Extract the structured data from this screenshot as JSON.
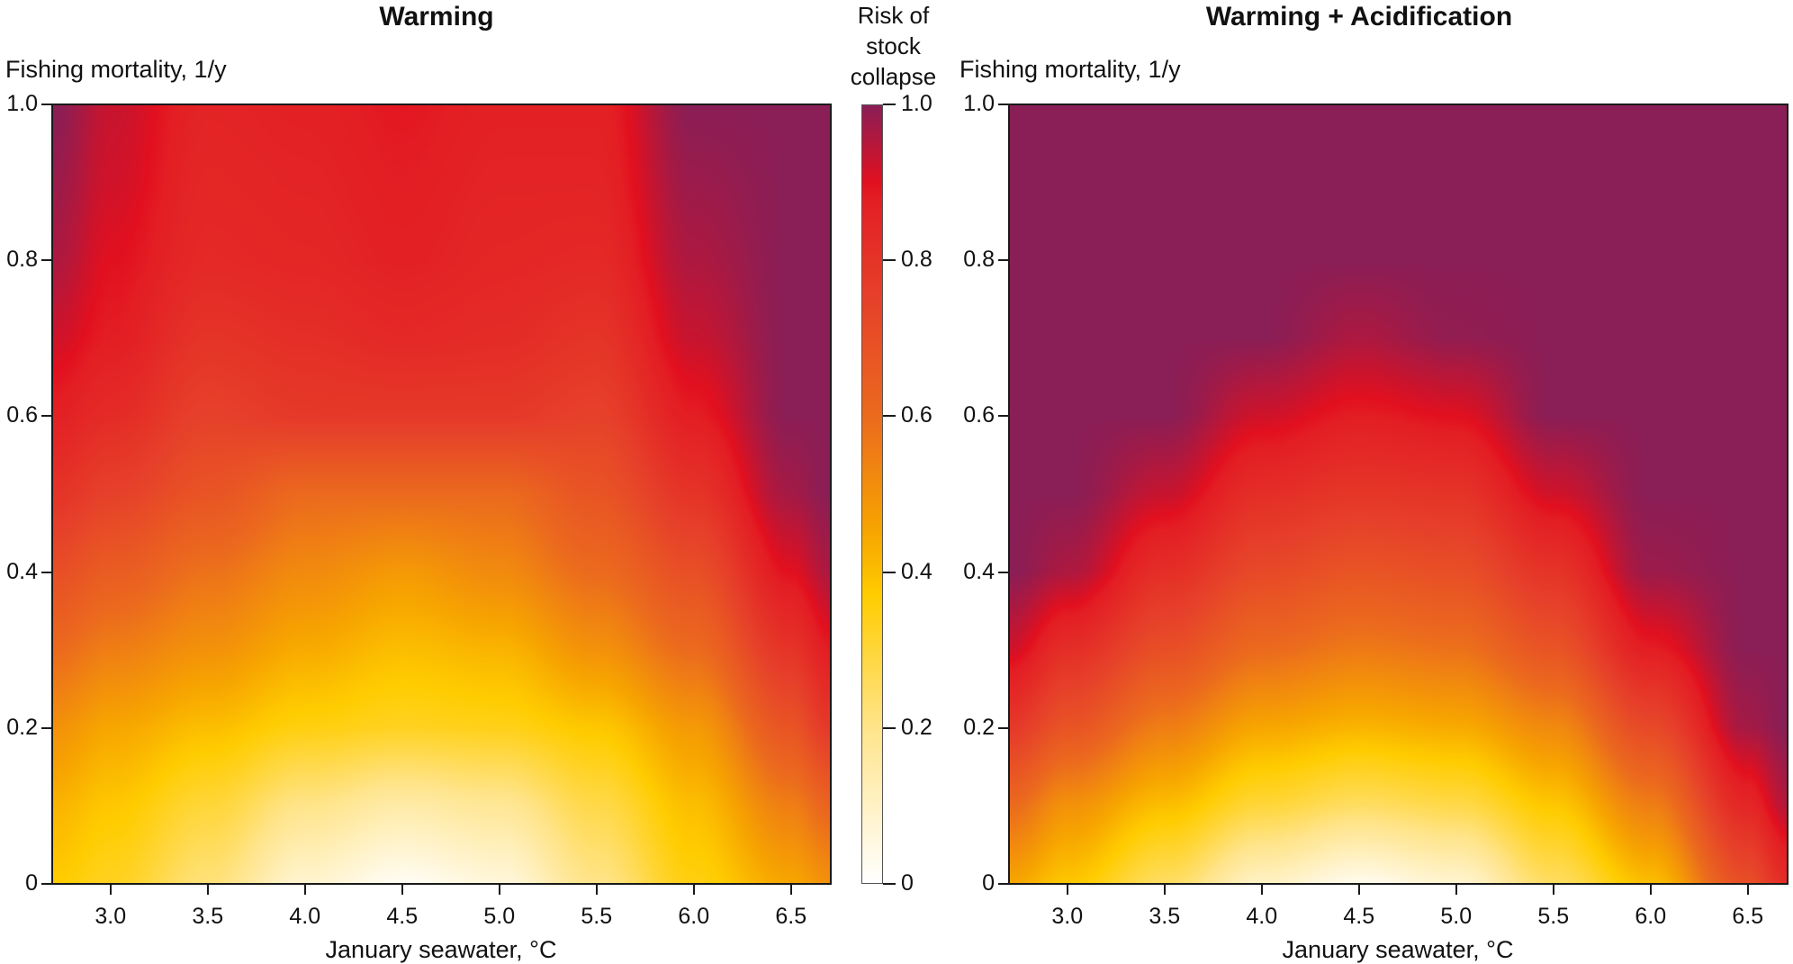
{
  "chart_data": [
    {
      "type": "heatmap",
      "title": "Warming",
      "xlabel": "January seawater, °C",
      "ylabel": "Fishing mortality, 1/y",
      "xlim": [
        2.7,
        6.7
      ],
      "ylim": [
        0,
        1.0
      ],
      "xticks": [
        "3.0",
        "3.5",
        "4.0",
        "4.5",
        "5.0",
        "5.5",
        "6.0",
        "6.5"
      ],
      "yticks": [
        "0",
        "0.2",
        "0.4",
        "0.6",
        "0.8",
        "1.0"
      ],
      "x": [
        2.7,
        3.0,
        3.5,
        4.0,
        4.5,
        5.0,
        5.5,
        6.0,
        6.5,
        6.7
      ],
      "y": [
        0,
        0.1,
        0.2,
        0.3,
        0.4,
        0.5,
        0.6,
        0.7,
        0.8,
        0.9,
        1.0
      ],
      "z": [
        [
          0.37,
          0.33,
          0.22,
          0.08,
          0.02,
          0.06,
          0.2,
          0.35,
          0.45,
          0.5
        ],
        [
          0.42,
          0.38,
          0.3,
          0.2,
          0.15,
          0.18,
          0.28,
          0.4,
          0.55,
          0.62
        ],
        [
          0.5,
          0.45,
          0.4,
          0.35,
          0.33,
          0.34,
          0.38,
          0.48,
          0.68,
          0.78
        ],
        [
          0.6,
          0.55,
          0.5,
          0.44,
          0.4,
          0.42,
          0.5,
          0.6,
          0.8,
          0.88
        ],
        [
          0.7,
          0.65,
          0.58,
          0.52,
          0.48,
          0.52,
          0.6,
          0.7,
          0.9,
          0.96
        ],
        [
          0.8,
          0.75,
          0.68,
          0.6,
          0.6,
          0.6,
          0.68,
          0.8,
          0.97,
          1.0
        ],
        [
          0.87,
          0.83,
          0.75,
          0.78,
          0.78,
          0.78,
          0.75,
          0.88,
          1.0,
          1.0
        ],
        [
          0.92,
          0.88,
          0.8,
          0.82,
          0.84,
          0.83,
          0.8,
          0.93,
          1.0,
          1.0
        ],
        [
          0.96,
          0.9,
          0.84,
          0.85,
          0.87,
          0.85,
          0.84,
          0.96,
          1.0,
          1.0
        ],
        [
          0.98,
          0.92,
          0.85,
          0.86,
          0.88,
          0.86,
          0.86,
          0.98,
          1.0,
          1.0
        ],
        [
          1.0,
          0.93,
          0.86,
          0.87,
          0.89,
          0.87,
          0.87,
          1.0,
          1.0,
          1.0
        ]
      ]
    },
    {
      "type": "heatmap",
      "title": "Warming + Acidification",
      "xlabel": "January seawater, °C",
      "ylabel": "Fishing mortality, 1/y",
      "xlim": [
        2.7,
        6.7
      ],
      "ylim": [
        0,
        1.0
      ],
      "xticks": [
        "3.0",
        "3.5",
        "4.0",
        "4.5",
        "5.0",
        "5.5",
        "6.0",
        "6.5"
      ],
      "yticks": [
        "0",
        "0.2",
        "0.4",
        "0.6",
        "0.8",
        "1.0"
      ],
      "x": [
        2.7,
        3.0,
        3.5,
        4.0,
        4.5,
        5.0,
        5.5,
        6.0,
        6.5,
        6.7
      ],
      "y": [
        0,
        0.1,
        0.2,
        0.3,
        0.4,
        0.5,
        0.6,
        0.7,
        0.8,
        0.9,
        1.0
      ],
      "z": [
        [
          0.45,
          0.38,
          0.25,
          0.1,
          0.03,
          0.08,
          0.25,
          0.4,
          0.7,
          0.82
        ],
        [
          0.6,
          0.5,
          0.4,
          0.3,
          0.25,
          0.28,
          0.38,
          0.55,
          0.85,
          0.95
        ],
        [
          0.78,
          0.68,
          0.55,
          0.45,
          0.42,
          0.44,
          0.52,
          0.72,
          0.97,
          1.0
        ],
        [
          0.92,
          0.82,
          0.7,
          0.6,
          0.56,
          0.58,
          0.68,
          0.88,
          1.0,
          1.0
        ],
        [
          1.0,
          0.96,
          0.82,
          0.72,
          0.68,
          0.7,
          0.8,
          0.98,
          1.0,
          1.0
        ],
        [
          1.0,
          1.0,
          0.93,
          0.82,
          0.79,
          0.8,
          0.92,
          1.0,
          1.0,
          1.0
        ],
        [
          1.0,
          1.0,
          1.0,
          0.92,
          0.88,
          0.9,
          1.0,
          1.0,
          1.0,
          1.0
        ],
        [
          1.0,
          1.0,
          1.0,
          1.0,
          0.96,
          0.99,
          1.0,
          1.0,
          1.0,
          1.0
        ],
        [
          1.0,
          1.0,
          1.0,
          1.0,
          1.0,
          1.0,
          1.0,
          1.0,
          1.0,
          1.0
        ],
        [
          1.0,
          1.0,
          1.0,
          1.0,
          1.0,
          1.0,
          1.0,
          1.0,
          1.0,
          1.0
        ],
        [
          1.0,
          1.0,
          1.0,
          1.0,
          1.0,
          1.0,
          1.0,
          1.0,
          1.0,
          1.0
        ]
      ]
    }
  ],
  "colorbar": {
    "title_lines": [
      "Risk of",
      "stock",
      "collapse"
    ],
    "range": [
      0,
      1.0
    ],
    "ticks": [
      "0",
      "0.2",
      "0.4",
      "0.6",
      "0.8",
      "1.0"
    ],
    "stops": [
      {
        "value": 0.0,
        "color": "#ffffff"
      },
      {
        "value": 0.2,
        "color": "#ffe48a"
      },
      {
        "value": 0.37,
        "color": "#ffcc00"
      },
      {
        "value": 0.45,
        "color": "#f7a600"
      },
      {
        "value": 0.6,
        "color": "#eb6a1e"
      },
      {
        "value": 0.75,
        "color": "#e6412a"
      },
      {
        "value": 0.88,
        "color": "#e31e24"
      },
      {
        "value": 0.9,
        "color": "#e2101f"
      },
      {
        "value": 1.0,
        "color": "#8a1e56"
      }
    ]
  }
}
